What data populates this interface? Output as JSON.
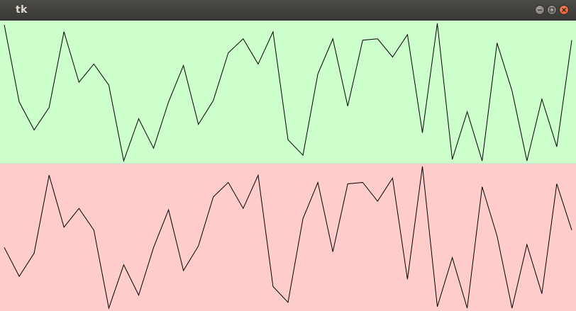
{
  "window": {
    "title": "tk",
    "controls": [
      {
        "name": "minimize-button",
        "icon": "minimize-icon"
      },
      {
        "name": "maximize-button",
        "icon": "maximize-icon"
      },
      {
        "name": "close-button",
        "icon": "close-icon"
      }
    ]
  },
  "colors": {
    "top_panel": "#ccffcc",
    "bottom_panel": "#ffcccc",
    "line": "#000000",
    "divider": "#c8dcc8"
  },
  "chart_data": {
    "type": "line",
    "panels": [
      {
        "name": "top",
        "color": "#ccffcc",
        "values": [
          0.02,
          0.57,
          0.77,
          0.61,
          0.07,
          0.43,
          0.3,
          0.45,
          0.99,
          0.69,
          0.9,
          0.57,
          0.31,
          0.73,
          0.56,
          0.22,
          0.12,
          0.3,
          0.07,
          0.84,
          0.95,
          0.37,
          0.12,
          0.6,
          0.13,
          0.12,
          0.25,
          0.09,
          0.79,
          0.01,
          0.98,
          0.64,
          0.99,
          0.15,
          0.49,
          0.99,
          0.55,
          0.89,
          0.13
        ]
      },
      {
        "name": "bottom",
        "color": "#ffcccc",
        "values": [
          0.57,
          0.77,
          0.61,
          0.07,
          0.43,
          0.3,
          0.45,
          0.99,
          0.69,
          0.9,
          0.57,
          0.31,
          0.73,
          0.56,
          0.22,
          0.12,
          0.3,
          0.07,
          0.84,
          0.95,
          0.37,
          0.12,
          0.6,
          0.13,
          0.12,
          0.25,
          0.09,
          0.79,
          0.01,
          0.98,
          0.64,
          0.99,
          0.15,
          0.49,
          0.99,
          0.55,
          0.89,
          0.13,
          0.45
        ]
      }
    ]
  }
}
